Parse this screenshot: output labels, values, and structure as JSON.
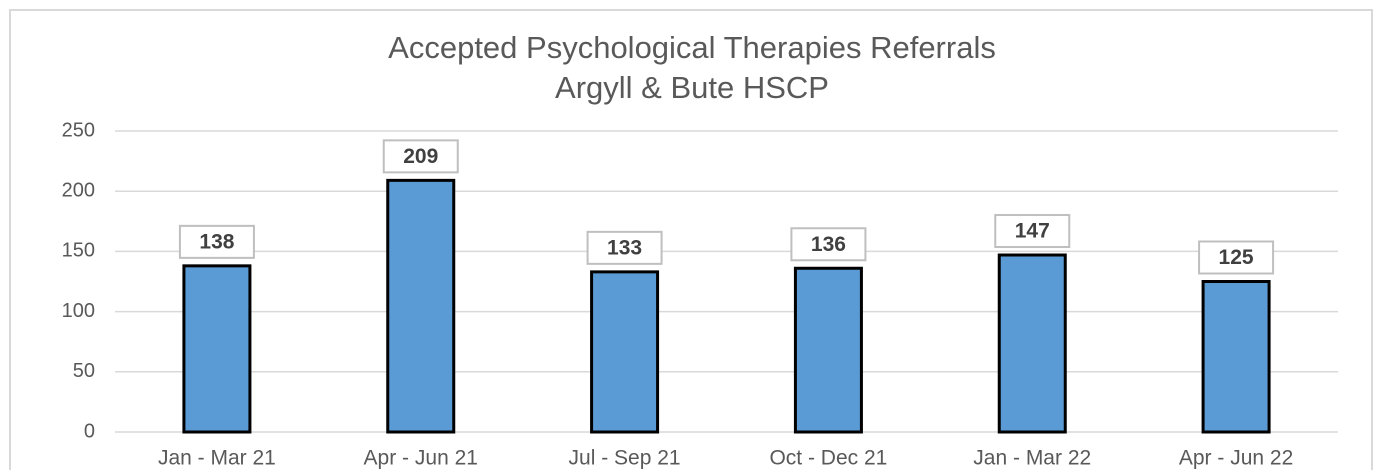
{
  "chart_data": {
    "type": "bar",
    "title": "Accepted Psychological Therapies Referrals",
    "subtitle": "Argyll & Bute HSCP",
    "categories": [
      "Jan - Mar 21",
      "Apr - Jun 21",
      "Jul - Sep 21",
      "Oct - Dec 21",
      "Jan - Mar 22",
      "Apr - Jun 22"
    ],
    "values": [
      138,
      209,
      133,
      136,
      147,
      125
    ],
    "color": "#5b9bd5",
    "ylim": [
      0,
      250
    ],
    "yticks": [
      0,
      50,
      100,
      150,
      200,
      250
    ],
    "grid": true
  }
}
